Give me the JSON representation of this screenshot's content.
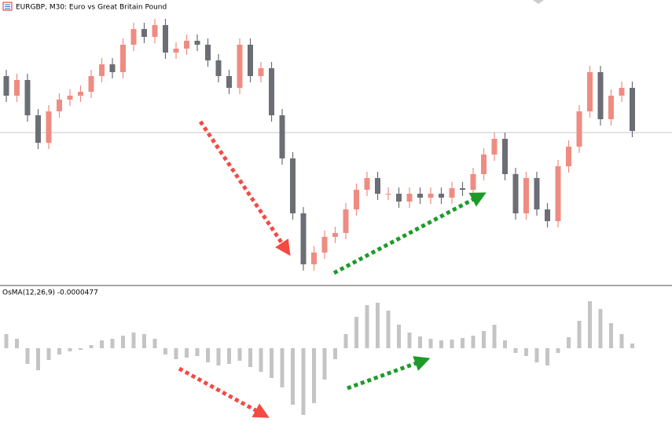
{
  "chart_data": [
    {
      "type": "candlestick",
      "title": "EURGBP, M30:  Euro vs Great Britain Pound",
      "open": [
        265,
        240,
        260,
        215,
        180,
        220,
        235,
        240,
        245,
        265,
        280,
        270,
        305,
        325,
        315,
        330,
        295,
        300,
        310,
        305,
        285,
        265,
        250,
        305,
        265,
        275,
        215,
        160,
        90,
        25,
        40,
        60,
        65,
        95,
        120,
        135,
        115,
        115,
        105,
        115,
        110,
        115,
        110,
        122,
        120,
        140,
        165,
        185,
        140,
        90,
        135,
        95,
        80,
        150,
        175,
        220,
        270,
        210,
        240,
        250
      ],
      "high": [
        273,
        268,
        268,
        223,
        228,
        243,
        248,
        253,
        273,
        288,
        288,
        313,
        333,
        333,
        338,
        338,
        308,
        318,
        318,
        313,
        293,
        273,
        313,
        313,
        283,
        283,
        223,
        168,
        98,
        48,
        68,
        73,
        103,
        128,
        143,
        143,
        123,
        123,
        123,
        123,
        123,
        123,
        130,
        130,
        148,
        173,
        193,
        193,
        148,
        143,
        143,
        103,
        158,
        183,
        228,
        278,
        278,
        248,
        258,
        258
      ],
      "low": [
        232,
        232,
        207,
        172,
        172,
        212,
        227,
        232,
        237,
        257,
        262,
        262,
        297,
        307,
        307,
        287,
        287,
        292,
        297,
        277,
        257,
        242,
        242,
        257,
        257,
        207,
        152,
        82,
        17,
        17,
        32,
        52,
        57,
        87,
        112,
        107,
        107,
        97,
        97,
        102,
        102,
        102,
        102,
        112,
        112,
        132,
        157,
        132,
        82,
        82,
        87,
        72,
        72,
        142,
        167,
        212,
        202,
        202,
        232,
        187
      ],
      "close": [
        240,
        260,
        215,
        180,
        220,
        235,
        240,
        245,
        265,
        280,
        270,
        305,
        325,
        315,
        330,
        295,
        300,
        310,
        305,
        285,
        265,
        250,
        305,
        265,
        275,
        215,
        160,
        90,
        25,
        40,
        60,
        65,
        95,
        120,
        135,
        115,
        115,
        105,
        115,
        110,
        115,
        110,
        122,
        120,
        140,
        165,
        185,
        140,
        90,
        135,
        95,
        80,
        150,
        175,
        220,
        270,
        210,
        240,
        250,
        195
      ],
      "up_color": "#ef8c82",
      "down_color": "#6b6e74",
      "ylim": [
        0,
        360
      ],
      "price_line": 193
    },
    {
      "type": "bar",
      "title": "OsMA(12,26,9) -0.0000477",
      "values": [
        18,
        12,
        -20,
        -28,
        -15,
        -8,
        -4,
        -2,
        4,
        10,
        12,
        16,
        20,
        18,
        12,
        -8,
        -14,
        -12,
        -10,
        -18,
        -22,
        -20,
        -16,
        -24,
        -30,
        -38,
        -50,
        -72,
        -85,
        -70,
        -40,
        -14,
        18,
        40,
        55,
        58,
        48,
        30,
        20,
        15,
        12,
        10,
        11,
        13,
        16,
        22,
        30,
        10,
        -6,
        -10,
        -18,
        -22,
        -6,
        14,
        35,
        60,
        50,
        32,
        18,
        6
      ],
      "color": "#c4c4c4",
      "ylim": [
        -103,
        78
      ]
    }
  ]
}
